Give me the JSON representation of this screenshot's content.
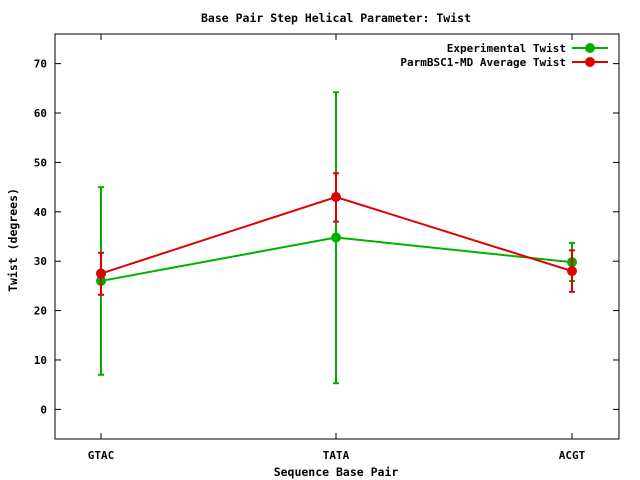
{
  "chart_data": {
    "type": "line",
    "title": "Base Pair Step Helical Parameter: Twist",
    "xlabel": "Sequence Base Pair",
    "ylabel": "Twist (degrees)",
    "categories": [
      "GTAC",
      "TATA",
      "ACGT"
    ],
    "ylim": [
      -6,
      76
    ],
    "yticks": [
      0,
      10,
      20,
      30,
      40,
      50,
      60,
      70
    ],
    "grid": false,
    "legend_position": "top-right",
    "series": [
      {
        "name": "Experimental Twist",
        "color": "#00b000",
        "values": [
          26.0,
          34.8,
          29.8
        ],
        "error_low": [
          7.0,
          5.3,
          26.0
        ],
        "error_high": [
          45.0,
          64.2,
          33.7
        ]
      },
      {
        "name": "ParmBSC1-MD Average Twist",
        "color": "#e00000",
        "values": [
          27.5,
          43.0,
          28.0
        ],
        "error_low": [
          23.2,
          38.0,
          23.8
        ],
        "error_high": [
          31.7,
          47.8,
          32.2
        ]
      }
    ]
  }
}
